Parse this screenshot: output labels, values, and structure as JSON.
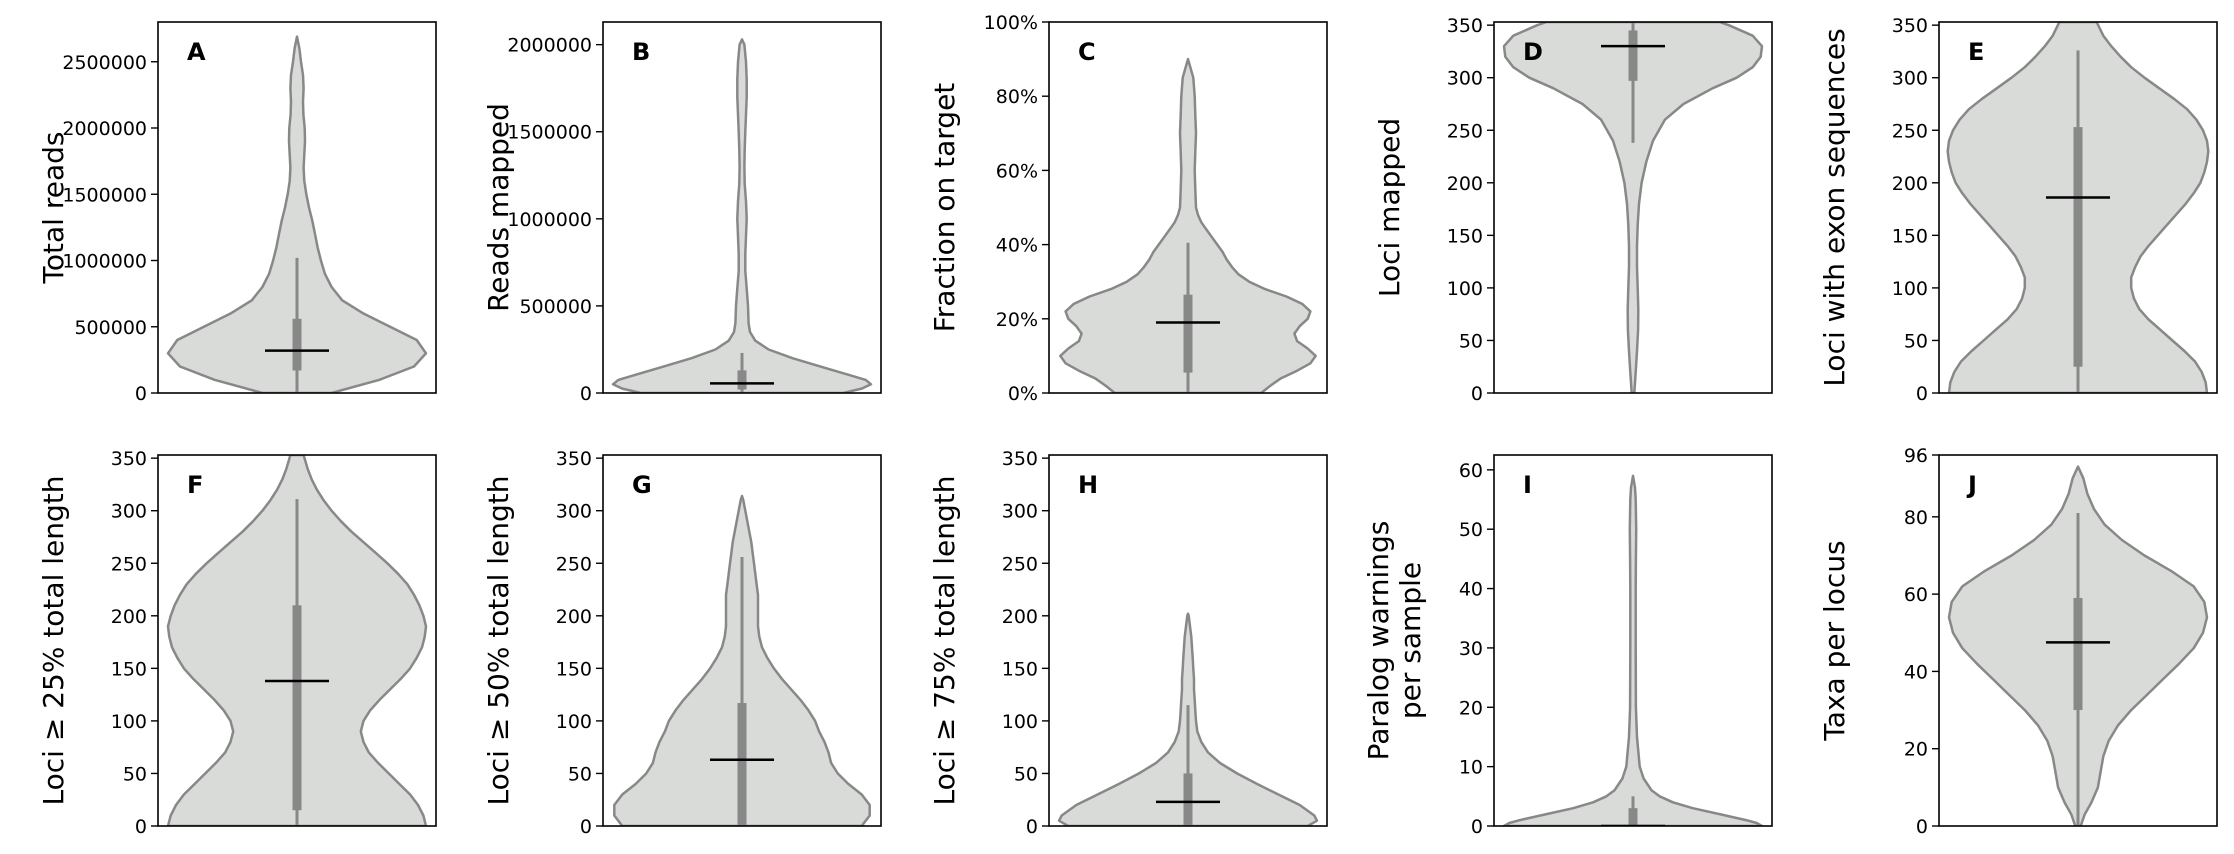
{
  "colors": {
    "violin_fill": "#d9dbd9",
    "violin_edge": "#888888",
    "box": "#888888",
    "median": "#000000",
    "frame": "#000000"
  },
  "chart_data": [
    {
      "type": "violin",
      "letter": "A",
      "ylabel_lines": [
        "Total reads"
      ],
      "ylim": [
        0,
        2800000
      ],
      "yticks": [
        0,
        500000,
        1000000,
        1500000,
        2000000,
        2500000
      ],
      "tick_format": "int",
      "density": [
        [
          0,
          0.26
        ],
        [
          100000,
          0.62
        ],
        [
          200000,
          0.88
        ],
        [
          300000,
          0.97
        ],
        [
          400000,
          0.9
        ],
        [
          500000,
          0.7
        ],
        [
          600000,
          0.5
        ],
        [
          700000,
          0.34
        ],
        [
          800000,
          0.26
        ],
        [
          900000,
          0.21
        ],
        [
          1000000,
          0.18
        ],
        [
          1100000,
          0.155
        ],
        [
          1200000,
          0.135
        ],
        [
          1300000,
          0.115
        ],
        [
          1400000,
          0.09
        ],
        [
          1500000,
          0.07
        ],
        [
          1600000,
          0.055
        ],
        [
          1700000,
          0.05
        ],
        [
          1800000,
          0.055
        ],
        [
          1900000,
          0.06
        ],
        [
          2000000,
          0.058
        ],
        [
          2100000,
          0.048
        ],
        [
          2200000,
          0.045
        ],
        [
          2300000,
          0.05
        ],
        [
          2400000,
          0.045
        ],
        [
          2500000,
          0.03
        ],
        [
          2600000,
          0.018
        ],
        [
          2690000,
          0
        ]
      ],
      "whisker": [
        0,
        1020000
      ],
      "quartiles": [
        170000,
        560000
      ],
      "median": 320000
    },
    {
      "type": "violin",
      "letter": "B",
      "ylabel_lines": [
        "Reads mapped"
      ],
      "ylim": [
        0,
        2130000
      ],
      "yticks": [
        0,
        500000,
        1000000,
        1500000,
        2000000
      ],
      "tick_format": "int",
      "density": [
        [
          0,
          0.76
        ],
        [
          25000,
          0.9
        ],
        [
          50000,
          0.97
        ],
        [
          75000,
          0.93
        ],
        [
          100000,
          0.82
        ],
        [
          150000,
          0.6
        ],
        [
          200000,
          0.38
        ],
        [
          250000,
          0.2
        ],
        [
          300000,
          0.1
        ],
        [
          350000,
          0.06
        ],
        [
          400000,
          0.05
        ],
        [
          500000,
          0.045
        ],
        [
          600000,
          0.035
        ],
        [
          700000,
          0.025
        ],
        [
          800000,
          0.025
        ],
        [
          900000,
          0.03
        ],
        [
          1000000,
          0.035
        ],
        [
          1100000,
          0.03
        ],
        [
          1200000,
          0.02
        ],
        [
          1300000,
          0.018
        ],
        [
          1400000,
          0.02
        ],
        [
          1500000,
          0.025
        ],
        [
          1600000,
          0.03
        ],
        [
          1700000,
          0.035
        ],
        [
          1800000,
          0.035
        ],
        [
          1900000,
          0.03
        ],
        [
          2000000,
          0.018
        ],
        [
          2030000,
          0
        ]
      ],
      "whisker": [
        0,
        230000
      ],
      "quartiles": [
        20000,
        130000
      ],
      "median": 55000
    },
    {
      "type": "violin",
      "letter": "C",
      "ylabel_lines": [
        "Fraction on target"
      ],
      "ylim": [
        0,
        1
      ],
      "yticks": [
        0,
        0.2,
        0.4,
        0.6,
        0.8,
        1.0
      ],
      "tick_format": "percent",
      "density": [
        [
          0,
          0.55
        ],
        [
          0.02,
          0.62
        ],
        [
          0.04,
          0.7
        ],
        [
          0.06,
          0.82
        ],
        [
          0.08,
          0.92
        ],
        [
          0.1,
          0.96
        ],
        [
          0.12,
          0.9
        ],
        [
          0.14,
          0.82
        ],
        [
          0.16,
          0.8
        ],
        [
          0.18,
          0.84
        ],
        [
          0.2,
          0.9
        ],
        [
          0.22,
          0.92
        ],
        [
          0.24,
          0.86
        ],
        [
          0.26,
          0.74
        ],
        [
          0.28,
          0.58
        ],
        [
          0.3,
          0.46
        ],
        [
          0.32,
          0.38
        ],
        [
          0.34,
          0.33
        ],
        [
          0.36,
          0.29
        ],
        [
          0.38,
          0.26
        ],
        [
          0.4,
          0.22
        ],
        [
          0.42,
          0.18
        ],
        [
          0.44,
          0.14
        ],
        [
          0.46,
          0.1
        ],
        [
          0.48,
          0.075
        ],
        [
          0.5,
          0.06
        ],
        [
          0.55,
          0.055
        ],
        [
          0.6,
          0.05
        ],
        [
          0.65,
          0.055
        ],
        [
          0.7,
          0.06
        ],
        [
          0.75,
          0.055
        ],
        [
          0.8,
          0.05
        ],
        [
          0.85,
          0.04
        ],
        [
          0.9,
          0
        ]
      ],
      "whisker": [
        0,
        0.405
      ],
      "quartiles": [
        0.055,
        0.265
      ],
      "median": 0.19
    },
    {
      "type": "violin",
      "letter": "D",
      "ylabel_lines": [
        "Loci mapped"
      ],
      "ylim": [
        0,
        353
      ],
      "yticks": [
        0,
        50,
        100,
        150,
        200,
        250,
        300,
        350
      ],
      "tick_format": "int",
      "density": [
        [
          0,
          0.01
        ],
        [
          20,
          0.02
        ],
        [
          40,
          0.03
        ],
        [
          60,
          0.038
        ],
        [
          80,
          0.04
        ],
        [
          100,
          0.035
        ],
        [
          120,
          0.03
        ],
        [
          140,
          0.03
        ],
        [
          160,
          0.035
        ],
        [
          180,
          0.045
        ],
        [
          200,
          0.065
        ],
        [
          220,
          0.1
        ],
        [
          240,
          0.15
        ],
        [
          260,
          0.24
        ],
        [
          275,
          0.38
        ],
        [
          290,
          0.6
        ],
        [
          300,
          0.78
        ],
        [
          310,
          0.9
        ],
        [
          320,
          0.96
        ],
        [
          330,
          0.97
        ],
        [
          340,
          0.9
        ],
        [
          350,
          0.72
        ],
        [
          353,
          0.65
        ]
      ],
      "whisker": [
        238,
        353
      ],
      "quartiles": [
        297,
        345
      ],
      "median": 330
    },
    {
      "type": "violin",
      "letter": "E",
      "ylabel_lines": [
        "Loci with exon sequences"
      ],
      "ylim": [
        0,
        353
      ],
      "yticks": [
        0,
        50,
        100,
        150,
        200,
        250,
        300,
        350
      ],
      "tick_format": "int",
      "density": [
        [
          0,
          0.97
        ],
        [
          10,
          0.96
        ],
        [
          20,
          0.93
        ],
        [
          30,
          0.88
        ],
        [
          40,
          0.8
        ],
        [
          50,
          0.71
        ],
        [
          60,
          0.62
        ],
        [
          70,
          0.53
        ],
        [
          80,
          0.46
        ],
        [
          90,
          0.42
        ],
        [
          100,
          0.4
        ],
        [
          110,
          0.4
        ],
        [
          120,
          0.43
        ],
        [
          130,
          0.47
        ],
        [
          140,
          0.53
        ],
        [
          150,
          0.6
        ],
        [
          160,
          0.67
        ],
        [
          170,
          0.74
        ],
        [
          180,
          0.81
        ],
        [
          190,
          0.87
        ],
        [
          200,
          0.92
        ],
        [
          210,
          0.95
        ],
        [
          220,
          0.97
        ],
        [
          230,
          0.98
        ],
        [
          240,
          0.97
        ],
        [
          250,
          0.94
        ],
        [
          260,
          0.89
        ],
        [
          270,
          0.82
        ],
        [
          280,
          0.72
        ],
        [
          290,
          0.61
        ],
        [
          300,
          0.5
        ],
        [
          310,
          0.4
        ],
        [
          320,
          0.32
        ],
        [
          330,
          0.25
        ],
        [
          340,
          0.19
        ],
        [
          353,
          0.14
        ]
      ],
      "whisker": [
        0,
        326
      ],
      "quartiles": [
        25,
        253
      ],
      "median": 186
    },
    {
      "type": "violin",
      "letter": "F",
      "ylabel_lines": [
        "Loci  ≥  25% total length"
      ],
      "ylim": [
        0,
        353
      ],
      "yticks": [
        0,
        50,
        100,
        150,
        200,
        250,
        300,
        350
      ],
      "tick_format": "int",
      "density": [
        [
          0,
          0.97
        ],
        [
          10,
          0.95
        ],
        [
          20,
          0.91
        ],
        [
          30,
          0.85
        ],
        [
          40,
          0.77
        ],
        [
          50,
          0.69
        ],
        [
          60,
          0.61
        ],
        [
          70,
          0.54
        ],
        [
          80,
          0.5
        ],
        [
          90,
          0.48
        ],
        [
          100,
          0.5
        ],
        [
          110,
          0.55
        ],
        [
          120,
          0.62
        ],
        [
          130,
          0.7
        ],
        [
          140,
          0.78
        ],
        [
          150,
          0.85
        ],
        [
          160,
          0.9
        ],
        [
          170,
          0.94
        ],
        [
          180,
          0.96
        ],
        [
          190,
          0.97
        ],
        [
          200,
          0.95
        ],
        [
          210,
          0.92
        ],
        [
          220,
          0.88
        ],
        [
          230,
          0.83
        ],
        [
          240,
          0.76
        ],
        [
          250,
          0.68
        ],
        [
          260,
          0.59
        ],
        [
          270,
          0.5
        ],
        [
          280,
          0.41
        ],
        [
          290,
          0.33
        ],
        [
          300,
          0.26
        ],
        [
          310,
          0.2
        ],
        [
          320,
          0.15
        ],
        [
          330,
          0.11
        ],
        [
          340,
          0.08
        ],
        [
          353,
          0.05
        ]
      ],
      "whisker": [
        0,
        311
      ],
      "quartiles": [
        15,
        210
      ],
      "median": 138
    },
    {
      "type": "violin",
      "letter": "G",
      "ylabel_lines": [
        "Loci  ≥  50% total length"
      ],
      "ylim": [
        0,
        353
      ],
      "yticks": [
        0,
        50,
        100,
        150,
        200,
        250,
        300,
        350
      ],
      "tick_format": "int",
      "density": [
        [
          0,
          0.9
        ],
        [
          10,
          0.96
        ],
        [
          20,
          0.96
        ],
        [
          30,
          0.9
        ],
        [
          40,
          0.8
        ],
        [
          50,
          0.72
        ],
        [
          60,
          0.67
        ],
        [
          70,
          0.65
        ],
        [
          80,
          0.62
        ],
        [
          90,
          0.58
        ],
        [
          100,
          0.55
        ],
        [
          110,
          0.5
        ],
        [
          120,
          0.44
        ],
        [
          130,
          0.37
        ],
        [
          140,
          0.3
        ],
        [
          150,
          0.24
        ],
        [
          160,
          0.19
        ],
        [
          170,
          0.15
        ],
        [
          180,
          0.13
        ],
        [
          190,
          0.12
        ],
        [
          200,
          0.12
        ],
        [
          210,
          0.12
        ],
        [
          220,
          0.12
        ],
        [
          230,
          0.11
        ],
        [
          240,
          0.1
        ],
        [
          250,
          0.09
        ],
        [
          260,
          0.08
        ],
        [
          270,
          0.07
        ],
        [
          280,
          0.055
        ],
        [
          290,
          0.04
        ],
        [
          300,
          0.025
        ],
        [
          310,
          0.01
        ],
        [
          314,
          0
        ]
      ],
      "whisker": [
        0,
        256
      ],
      "quartiles": [
        0,
        117
      ],
      "median": 63
    },
    {
      "type": "violin",
      "letter": "H",
      "ylabel_lines": [
        "Loci  ≥  75% total length"
      ],
      "ylim": [
        0,
        353
      ],
      "yticks": [
        0,
        50,
        100,
        150,
        200,
        250,
        300,
        350
      ],
      "tick_format": "int",
      "density": [
        [
          0,
          0.9
        ],
        [
          5,
          0.97
        ],
        [
          10,
          0.95
        ],
        [
          20,
          0.84
        ],
        [
          30,
          0.68
        ],
        [
          40,
          0.52
        ],
        [
          50,
          0.37
        ],
        [
          60,
          0.24
        ],
        [
          70,
          0.15
        ],
        [
          80,
          0.1
        ],
        [
          90,
          0.07
        ],
        [
          100,
          0.06
        ],
        [
          110,
          0.055
        ],
        [
          120,
          0.05
        ],
        [
          130,
          0.045
        ],
        [
          140,
          0.045
        ],
        [
          150,
          0.04
        ],
        [
          160,
          0.035
        ],
        [
          170,
          0.03
        ],
        [
          180,
          0.025
        ],
        [
          190,
          0.015
        ],
        [
          200,
          0.005
        ],
        [
          202,
          0
        ]
      ],
      "whisker": [
        0,
        115
      ],
      "quartiles": [
        0,
        50
      ],
      "median": 23
    },
    {
      "type": "violin",
      "letter": "I",
      "ylabel_lines": [
        "Paralog warnings",
        "per sample"
      ],
      "ylim": [
        0,
        62.5
      ],
      "yticks": [
        0,
        10,
        20,
        30,
        40,
        50,
        60
      ],
      "tick_format": "int",
      "density": [
        [
          0,
          0.97
        ],
        [
          0.5,
          0.93
        ],
        [
          1,
          0.85
        ],
        [
          2,
          0.65
        ],
        [
          3,
          0.45
        ],
        [
          4,
          0.3
        ],
        [
          5,
          0.2
        ],
        [
          6,
          0.14
        ],
        [
          8,
          0.08
        ],
        [
          10,
          0.05
        ],
        [
          15,
          0.03
        ],
        [
          20,
          0.022
        ],
        [
          30,
          0.02
        ],
        [
          40,
          0.02
        ],
        [
          45,
          0.022
        ],
        [
          50,
          0.024
        ],
        [
          55,
          0.02
        ],
        [
          57,
          0.015
        ],
        [
          59,
          0
        ]
      ],
      "whisker": [
        0,
        5
      ],
      "quartiles": [
        0,
        3
      ],
      "median": 0
    },
    {
      "type": "violin",
      "letter": "J",
      "ylabel_lines": [
        "Taxa per locus"
      ],
      "ylim": [
        0,
        96
      ],
      "yticks": [
        0,
        20,
        40,
        60,
        80,
        96
      ],
      "tick_format": "int",
      "density": [
        [
          0,
          0.02
        ],
        [
          3,
          0.05
        ],
        [
          6,
          0.1
        ],
        [
          10,
          0.15
        ],
        [
          14,
          0.17
        ],
        [
          18,
          0.19
        ],
        [
          22,
          0.23
        ],
        [
          26,
          0.3
        ],
        [
          30,
          0.4
        ],
        [
          34,
          0.52
        ],
        [
          38,
          0.64
        ],
        [
          42,
          0.76
        ],
        [
          46,
          0.87
        ],
        [
          50,
          0.94
        ],
        [
          54,
          0.97
        ],
        [
          58,
          0.95
        ],
        [
          62,
          0.87
        ],
        [
          66,
          0.7
        ],
        [
          70,
          0.5
        ],
        [
          74,
          0.33
        ],
        [
          78,
          0.2
        ],
        [
          82,
          0.12
        ],
        [
          86,
          0.07
        ],
        [
          90,
          0.04
        ],
        [
          93,
          0
        ]
      ],
      "whisker": [
        0,
        81
      ],
      "quartiles": [
        30,
        59
      ],
      "median": 47.5
    }
  ]
}
